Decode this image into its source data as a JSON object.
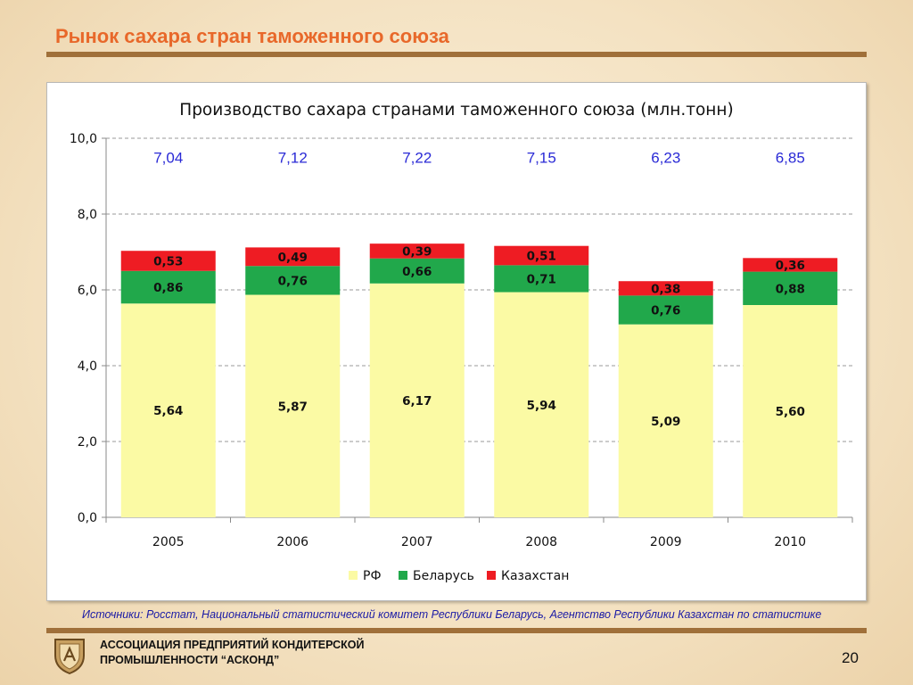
{
  "slide": {
    "title": "Рынок сахара стран таможенного союза",
    "sources": "Источники: Росстат, Национальный статистический комитет Республики Беларусь, Агентство Республики Казахстан по статистике",
    "association_line1": "АССОЦИАЦИЯ ПРЕДПРИЯТИЙ  КОНДИТЕРСКОЙ",
    "association_line2": "ПРОМЫШЛЕННОСТИ “АСКОНД”",
    "page_number": "20"
  },
  "colors": {
    "accent_title": "#e8682a",
    "rule": "#a0703a",
    "rf": "#fbfaa4",
    "belarus": "#21a84b",
    "kazakhstan": "#ee1c23",
    "totals": "#2a2ad6"
  },
  "chart_data": {
    "type": "bar",
    "stacked": true,
    "title": "Производство сахара странами таможенного союза (млн.тонн)",
    "categories": [
      "2005",
      "2006",
      "2007",
      "2008",
      "2009",
      "2010"
    ],
    "series": [
      {
        "name": "РФ",
        "values": [
          5.64,
          5.87,
          6.17,
          5.94,
          5.09,
          5.6
        ],
        "labels": [
          "5,64",
          "5,87",
          "6,17",
          "5,94",
          "5,09",
          "5,60"
        ],
        "color": "#fbfaa4"
      },
      {
        "name": "Беларусь",
        "values": [
          0.86,
          0.76,
          0.66,
          0.71,
          0.76,
          0.88
        ],
        "labels": [
          "0,86",
          "0,76",
          "0,66",
          "0,71",
          "0,76",
          "0,88"
        ],
        "color": "#21a84b"
      },
      {
        "name": "Казахстан",
        "values": [
          0.53,
          0.49,
          0.39,
          0.51,
          0.38,
          0.36
        ],
        "labels": [
          "0,53",
          "0,49",
          "0,39",
          "0,51",
          "0,38",
          "0,36"
        ],
        "color": "#ee1c23"
      }
    ],
    "totals": [
      "7,04",
      "7,12",
      "7,22",
      "7,15",
      "6,23",
      "6,85"
    ],
    "y_ticks": [
      "0,0",
      "2,0",
      "4,0",
      "6,0",
      "8,0",
      "10,0"
    ],
    "ylim": [
      0,
      10
    ],
    "y_step": 2,
    "grid": true,
    "legend_position": "bottom"
  }
}
